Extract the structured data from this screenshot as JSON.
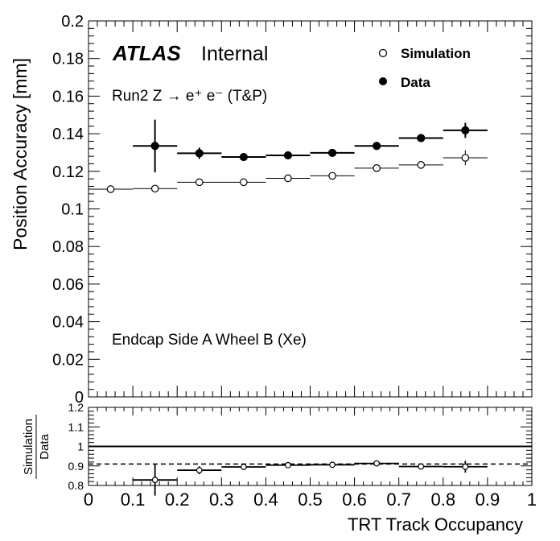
{
  "chart_data": [
    {
      "type": "scatter",
      "panel": "main",
      "ylabel": "Position Accuracy [mm]",
      "ylim": [
        0,
        0.2
      ],
      "xlim": [
        0,
        1
      ],
      "yticks": [
        "0",
        "0.02",
        "0.04",
        "0.06",
        "0.08",
        "0.1",
        "0.12",
        "0.14",
        "0.16",
        "0.18",
        "0.2"
      ],
      "annotations": {
        "atlas": "ATLAS",
        "internal": "Internal",
        "run_label": "Run2 Z → e⁺ e⁻ (T&P)",
        "region_label": "Endcap Side A Wheel B (Xe)"
      },
      "legend": {
        "placement": "top-right",
        "entries": [
          {
            "label": "Simulation",
            "marker": "open-circle"
          },
          {
            "label": "Data",
            "marker": "filled-circle"
          }
        ]
      },
      "series": [
        {
          "name": "Simulation",
          "marker": "open-circle",
          "x_low": [
            0.0,
            0.1,
            0.2,
            0.3,
            0.4,
            0.5,
            0.6,
            0.7,
            0.8
          ],
          "x_high": [
            0.1,
            0.2,
            0.3,
            0.4,
            0.5,
            0.6,
            0.7,
            0.8,
            0.9
          ],
          "y": [
            0.1105,
            0.1108,
            0.1142,
            0.1142,
            0.1163,
            0.1176,
            0.1217,
            0.1234,
            0.1272
          ],
          "y_err": [
            0.0006,
            0.0006,
            0.0008,
            0.0006,
            0.0006,
            0.0006,
            0.0008,
            0.001,
            0.004
          ]
        },
        {
          "name": "Data",
          "marker": "filled-circle",
          "x_low": [
            0.1,
            0.2,
            0.3,
            0.4,
            0.5,
            0.6,
            0.7,
            0.8
          ],
          "x_high": [
            0.2,
            0.3,
            0.4,
            0.5,
            0.6,
            0.7,
            0.8,
            0.9
          ],
          "y": [
            0.1335,
            0.1296,
            0.1276,
            0.1285,
            0.1298,
            0.1335,
            0.1377,
            0.1418
          ],
          "y_err": [
            0.014,
            0.003,
            0.0015,
            0.0015,
            0.0015,
            0.0015,
            0.002,
            0.004
          ]
        }
      ]
    },
    {
      "type": "scatter",
      "panel": "ratio",
      "ylabel_num": "Simulation",
      "ylabel_den": "Data",
      "xlabel": "TRT Track Occupancy",
      "ylim": [
        0.8,
        1.2
      ],
      "xlim": [
        0,
        1
      ],
      "yticks": [
        "0.8",
        "0.9",
        "1",
        "1.1",
        "1.2"
      ],
      "xticks": [
        "0",
        "0.1",
        "0.2",
        "0.3",
        "0.4",
        "0.5",
        "0.6",
        "0.7",
        "0.8",
        "0.9",
        "1"
      ],
      "reference_line": 1.0,
      "dashed_line": 0.91,
      "series": [
        {
          "name": "Simulation / Data",
          "x_low": [
            0.1,
            0.2,
            0.3,
            0.4,
            0.5,
            0.6,
            0.7,
            0.8
          ],
          "x_high": [
            0.2,
            0.3,
            0.4,
            0.5,
            0.6,
            0.7,
            0.8,
            0.9
          ],
          "y": [
            0.828,
            0.878,
            0.895,
            0.904,
            0.906,
            0.913,
            0.897,
            0.896
          ],
          "y_err": [
            0.08,
            0.02,
            0.01,
            0.01,
            0.01,
            0.01,
            0.01,
            0.03
          ]
        }
      ]
    }
  ]
}
